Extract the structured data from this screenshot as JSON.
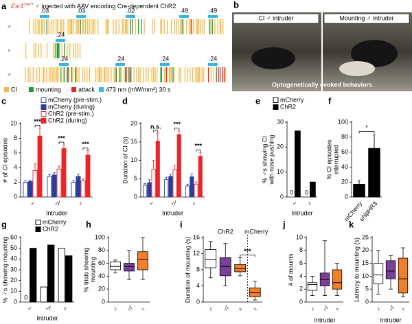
{
  "panel_a": {
    "panel": "a",
    "title_gene": "Esr1",
    "title_sup": "cre/+",
    "title_rest": "♂ injected with AAV encoding Cre-dependent ChR2",
    "rows": [
      {
        "sex": "♂",
        "stim": [
          ".03",
          ".03",
          ".02",
          ".49",
          ".49"
        ]
      },
      {
        "sex": "♀",
        "stim": [
          ".24"
        ]
      },
      {
        "sex": "♂",
        "stim": [
          ".24",
          ".24",
          ".24",
          ".24"
        ]
      }
    ],
    "legend": [
      {
        "name": "CI",
        "color": "#f5b94a"
      },
      {
        "name": "mounting",
        "color": "#1f9a3a"
      },
      {
        "name": "attack",
        "color": "#e8262a"
      },
      {
        "name": "473 nm (mW/mm²) 30 s",
        "color": "#35b6e8"
      }
    ]
  },
  "panel_b": {
    "panel": "b",
    "labels": [
      "CI ♂ intruder",
      "Mounting ♂ intruder"
    ],
    "caption": "Optogenetically evoked behaviors"
  },
  "chart_data": [
    {
      "panel": "c",
      "type": "bar",
      "ylabel": [
        "# of CI episodes"
      ],
      "xlabel": "Intruder",
      "categories": [
        "♂",
        "♂̸",
        "♀"
      ],
      "ylim": [
        0,
        10
      ],
      "yticks": [
        0,
        2,
        4,
        6,
        8,
        10
      ],
      "legend": "top",
      "series": [
        {
          "name": "mCherry (pre-stim.)",
          "color": "#2b3d9f",
          "fill": "#ffffff",
          "values": [
            2.0,
            2.8,
            2.0
          ],
          "errors": [
            0.2,
            0.3,
            0.2
          ]
        },
        {
          "name": "mCherry (during)",
          "color": "#2b3d9f",
          "values": [
            2.1,
            3.0,
            2.8
          ],
          "errors": [
            0.2,
            0.3,
            0.3
          ]
        },
        {
          "name": "ChR2 (pre-stim.)",
          "color": "#e8262a",
          "fill": "#ffffff",
          "values": [
            3.6,
            3.8,
            2.2
          ],
          "errors": [
            0.9,
            0.4,
            0.3
          ]
        },
        {
          "name": "ChR2 (during)",
          "color": "#e8262a",
          "values": [
            8.3,
            6.6,
            5.7
          ],
          "errors": [
            1.1,
            0.5,
            0.6
          ]
        }
      ],
      "annotations": [
        "***",
        "***",
        "***"
      ]
    },
    {
      "panel": "d",
      "type": "bar",
      "ylabel": [
        "Duration of CI (s)"
      ],
      "xlabel": "Intruder",
      "categories": [
        "♂",
        "♂̸",
        "♀"
      ],
      "ylim": [
        0,
        20
      ],
      "yticks": [
        0,
        5,
        10,
        15,
        20
      ],
      "series": [
        {
          "color": "#2b3d9f",
          "fill": "#ffffff",
          "values": [
            3.2,
            4.8,
            3.0
          ],
          "errors": [
            0.5,
            0.6,
            0.5
          ]
        },
        {
          "color": "#2b3d9f",
          "values": [
            3.9,
            5.6,
            5.5
          ],
          "errors": [
            0.8,
            0.6,
            0.8
          ]
        },
        {
          "color": "#e8262a",
          "fill": "#ffffff",
          "values": [
            7.5,
            7.5,
            3.5
          ],
          "errors": [
            2.5,
            1.0,
            0.6
          ]
        },
        {
          "color": "#e8262a",
          "values": [
            15.2,
            17.0,
            11.1
          ],
          "errors": [
            2.2,
            1.0,
            1.0
          ]
        }
      ],
      "annotations": [
        "n.s.",
        "***",
        "***"
      ]
    },
    {
      "panel": "e",
      "type": "bar",
      "ylabel": [
        "% ♂s showing CI",
        "with nose pushing"
      ],
      "xlabel": "Intruder",
      "categories": [
        "♂",
        "♀"
      ],
      "ylim": [
        0,
        30
      ],
      "yticks": [
        0,
        10,
        20,
        30
      ],
      "legend": "top",
      "series": [
        {
          "name": "mCherry",
          "color": "#000000",
          "fill": "#ffffff",
          "values": [
            0,
            0
          ]
        },
        {
          "name": "ChR2",
          "color": "#000000",
          "values": [
            26.5,
            6
          ]
        }
      ]
    },
    {
      "panel": "f",
      "type": "bar",
      "ylabel": [
        "% CI episodes",
        "interrupted"
      ],
      "categories": [
        "mCherry",
        "eNpHR3"
      ],
      "ylim": [
        0,
        100
      ],
      "yticks": [
        0,
        20,
        40,
        60,
        80,
        100
      ],
      "series": [
        {
          "color": "#000000",
          "values": [
            17,
            65
          ],
          "errors": [
            5,
            18
          ]
        }
      ],
      "annotation": "*"
    },
    {
      "panel": "g",
      "type": "bar",
      "ylabel": [
        "% ♂s showing mounting"
      ],
      "xlabel": "Intruder",
      "categories": [
        "♂",
        "♂̸",
        "♀"
      ],
      "ylim": [
        0,
        60
      ],
      "yticks": [
        0,
        10,
        20,
        30,
        40,
        50,
        60
      ],
      "legend": "top",
      "series": [
        {
          "name": "mCherry",
          "color": "#000000",
          "fill": "#ffffff",
          "values": [
            0,
            14,
            50
          ]
        },
        {
          "name": "ChR2",
          "color": "#000000",
          "values": [
            50,
            53,
            43
          ]
        }
      ]
    },
    {
      "panel": "h",
      "type": "box",
      "ylabel": [
        "% trials showing",
        "mounting"
      ],
      "categories": [
        "♂",
        "♂̸",
        "♀"
      ],
      "colors": [
        "#ffffff",
        "#7b3f98",
        "#f07f2a"
      ],
      "ylim": [
        0,
        100
      ],
      "yticks": [
        0,
        20,
        40,
        60,
        80,
        100
      ],
      "min": [
        45,
        35,
        35
      ],
      "q1": [
        50,
        48,
        50
      ],
      "median": [
        55,
        55,
        66
      ],
      "q3": [
        62,
        60,
        78
      ],
      "max": [
        65,
        80,
        100
      ]
    },
    {
      "panel": "i",
      "type": "box",
      "ylabel": [
        "Duration of mounting (s)"
      ],
      "categories": [
        "♂",
        "♂̸",
        "♀",
        "♀"
      ],
      "colors": [
        "#ffffff",
        "#7b3f98",
        "#f07f2a",
        "#f07f2a"
      ],
      "ylim": [
        0,
        16
      ],
      "yticks": [
        0,
        4,
        8,
        12,
        16
      ],
      "min": [
        6,
        4,
        6.5,
        0.5
      ],
      "q1": [
        8.5,
        6.5,
        7.5,
        1.3
      ],
      "median": [
        10.5,
        8.8,
        8.3,
        2.3
      ],
      "q3": [
        13,
        11,
        9.3,
        3.5
      ],
      "max": [
        15,
        14.5,
        11,
        5.2
      ],
      "group_labels": [
        "ChR2",
        "mCherry"
      ],
      "annotation": "***"
    },
    {
      "panel": "j",
      "type": "box",
      "ylabel": [
        "# of mounts"
      ],
      "xlabel": "Intruder",
      "categories": [
        "♂",
        "♂̸",
        "♀"
      ],
      "colors": [
        "#ffffff",
        "#7b3f98",
        "#f07f2a"
      ],
      "ylim": [
        0,
        10
      ],
      "yticks": [
        0,
        2,
        4,
        6,
        8,
        10
      ],
      "min": [
        1,
        1,
        1
      ],
      "q1": [
        1.8,
        2.5,
        2
      ],
      "median": [
        2.7,
        3.5,
        3
      ],
      "q3": [
        3,
        4.5,
        5
      ],
      "max": [
        4,
        9.5,
        6
      ]
    },
    {
      "panel": "k",
      "type": "box",
      "ylabel": [
        "Latency to mounting (s)"
      ],
      "xlabel": "Intruder",
      "categories": [
        "♂",
        "♂̸",
        "♀"
      ],
      "colors": [
        "#ffffff",
        "#7b3f98",
        "#f07f2a"
      ],
      "ylim": [
        0,
        25
      ],
      "yticks": [
        0,
        5,
        10,
        15,
        20,
        25
      ],
      "min": [
        3,
        5,
        2
      ],
      "q1": [
        7,
        9,
        3.5
      ],
      "median": [
        10.5,
        12,
        9
      ],
      "q3": [
        15,
        16,
        17
      ],
      "max": [
        20,
        18,
        21
      ]
    }
  ]
}
